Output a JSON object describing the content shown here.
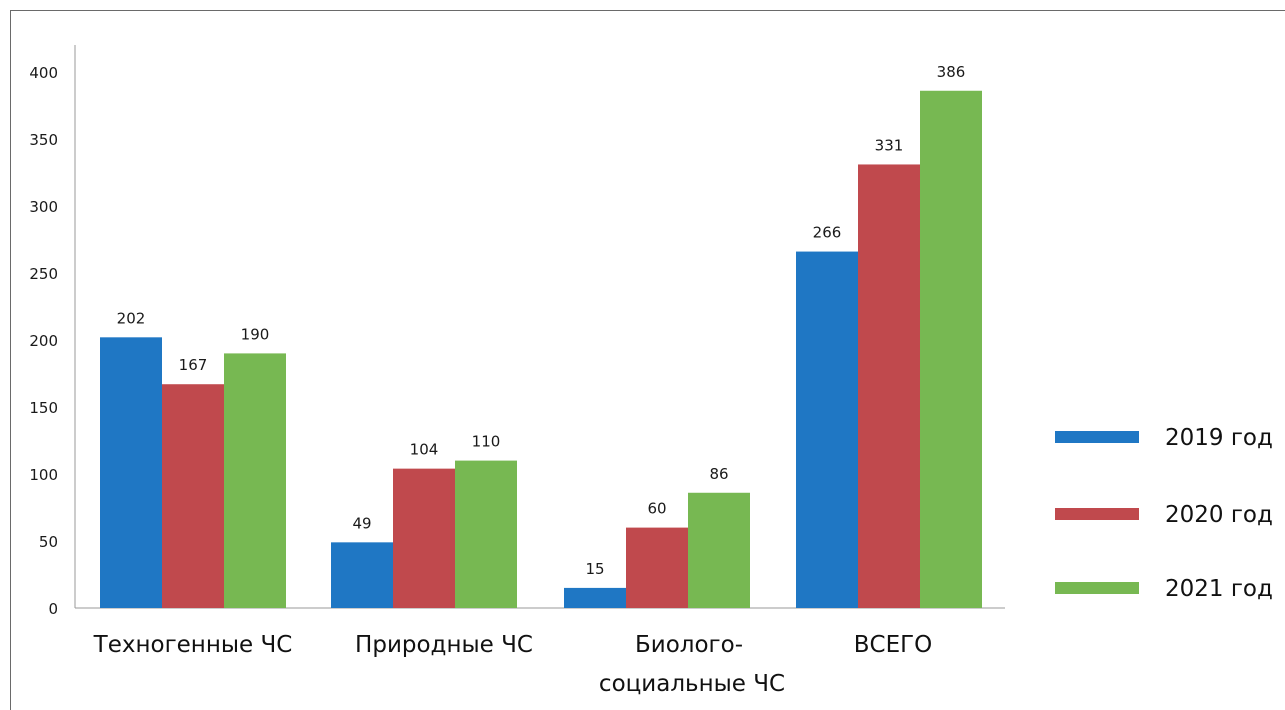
{
  "chart_data": {
    "type": "bar",
    "categories": [
      [
        "Техногенные ЧС"
      ],
      [
        "Природные ЧС"
      ],
      [
        "Биолого-",
        "социальные  ЧС"
      ],
      [
        "ВСЕГО"
      ]
    ],
    "series": [
      {
        "name": "2019 год",
        "color": "#1f77c4",
        "values": [
          202,
          49,
          15,
          266
        ]
      },
      {
        "name": "2020 год",
        "color": "#c0494d",
        "values": [
          167,
          104,
          60,
          331
        ]
      },
      {
        "name": "2021 год",
        "color": "#77b852",
        "values": [
          190,
          110,
          86,
          386
        ]
      }
    ],
    "yticks": [
      0,
      50,
      100,
      150,
      200,
      250,
      300,
      350,
      400
    ],
    "ylim": [
      0,
      400
    ],
    "legend": "right",
    "grid": false
  }
}
